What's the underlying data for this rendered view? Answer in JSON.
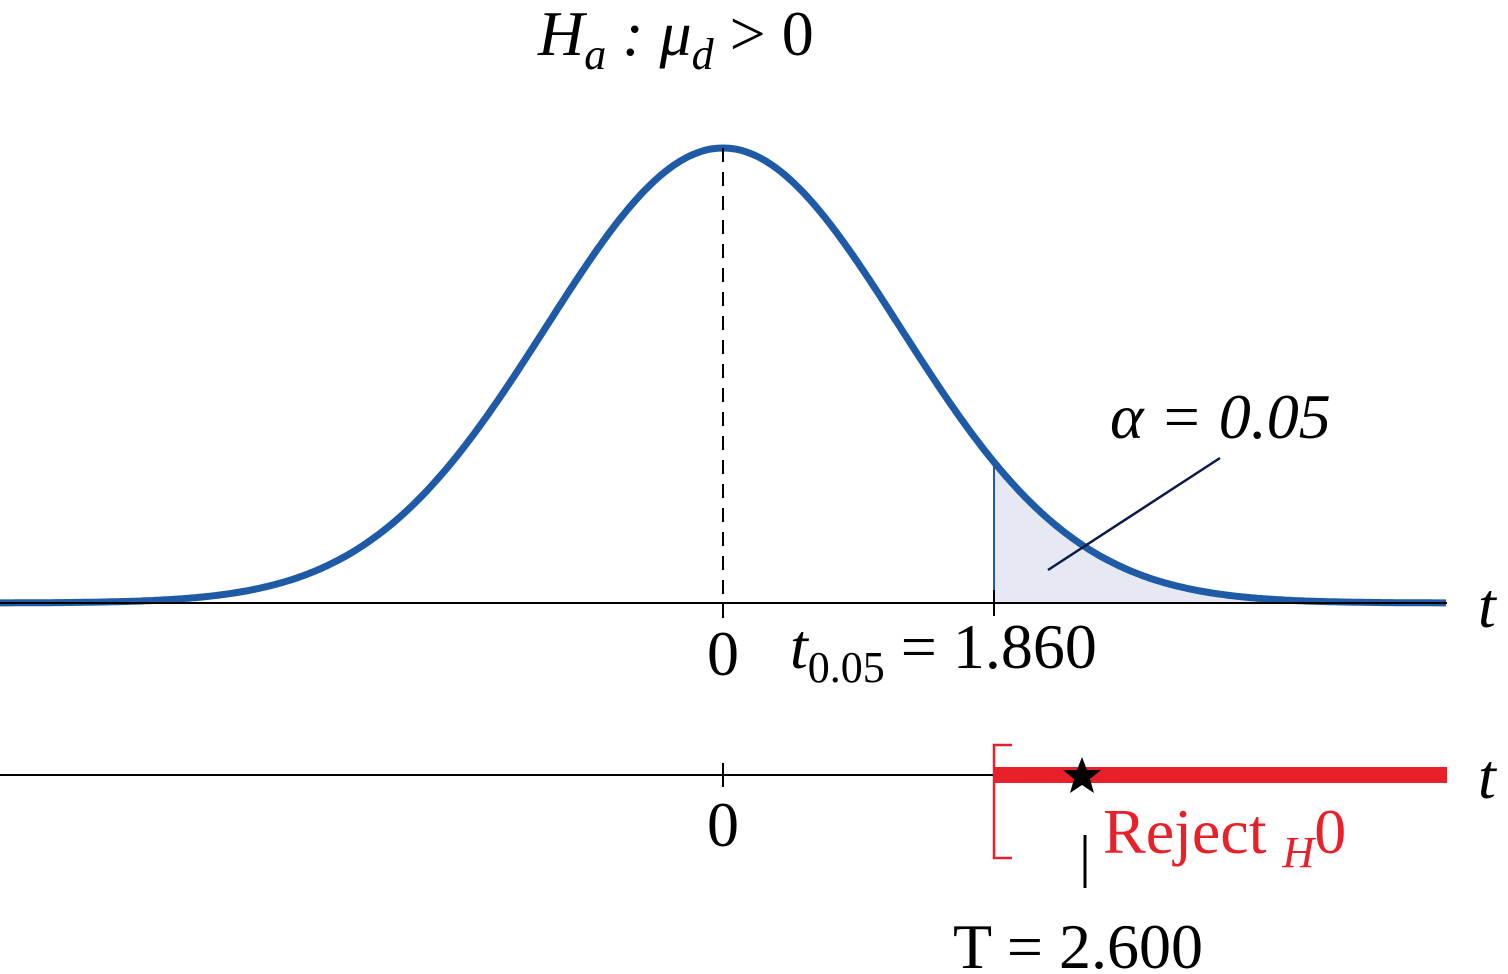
{
  "hypothesis": [
    "H",
    "a",
    " : μ",
    "d",
    " > 0"
  ],
  "alpha_label": "α = 0.05",
  "axis_label_top": "t",
  "axis_label_bottom": "t",
  "center_label_top": "0",
  "center_label_bottom": "0",
  "critical_label": [
    "t",
    "0.05",
    " = 1.860"
  ],
  "reject_label": [
    "Reject ",
    "H",
    "0"
  ],
  "statistic_label": "T = 2.600"
}
